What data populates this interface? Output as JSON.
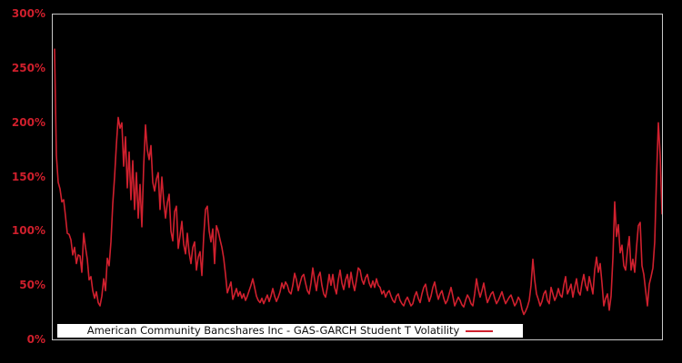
{
  "figure": {
    "background_color": "#000000",
    "plot_border_color": "#c8c8c8"
  },
  "y_axis": {
    "tick_labels": [
      "0%",
      "50%",
      "100%",
      "150%",
      "200%",
      "250%",
      "300%"
    ],
    "tick_values": [
      0,
      50,
      100,
      150,
      200,
      250,
      300
    ],
    "label_color": "#cf1f2c"
  },
  "x_axis": {
    "tick_labels": []
  },
  "legend": {
    "label": "American Community Bancshares Inc - GAS-GARCH Student T Volatility",
    "background": "#ffffff",
    "text_color": "#111111",
    "line_sample_color": "#d0202e",
    "position": "bottom-center-inside"
  },
  "chart_data": {
    "type": "line",
    "title": "",
    "xlabel": "",
    "ylabel": "",
    "ylim": [
      0,
      300
    ],
    "y_unit": "%",
    "grid": false,
    "x_tick_labels_visible": false,
    "legend_position": "bottom-center-inside",
    "series": [
      {
        "name": "American Community Bancshares Inc - GAS-GARCH Student T Volatility",
        "color": "#d0202e",
        "unit": "percent volatility",
        "values": [
          268,
          170,
          145,
          139,
          127,
          129,
          114,
          98,
          97,
          92,
          78,
          85,
          70,
          78,
          77,
          62,
          98,
          85,
          74,
          55,
          58,
          45,
          38,
          44,
          34,
          31,
          40,
          56,
          45,
          75,
          68,
          90,
          125,
          150,
          180,
          205,
          195,
          200,
          160,
          187,
          140,
          173,
          129,
          165,
          120,
          154,
          112,
          143,
          104,
          160,
          198,
          175,
          166,
          179,
          145,
          137,
          148,
          154,
          120,
          150,
          128,
          112,
          126,
          134,
          100,
          91,
          118,
          123,
          84,
          96,
          109,
          88,
          79,
          98,
          80,
          70,
          85,
          90,
          64,
          76,
          81,
          59,
          95,
          120,
          123,
          100,
          90,
          102,
          70,
          105,
          100,
          92,
          85,
          75,
          60,
          43,
          48,
          53,
          37,
          42,
          47,
          40,
          44,
          38,
          42,
          36,
          40,
          45,
          50,
          56,
          48,
          40,
          36,
          34,
          38,
          33,
          37,
          41,
          35,
          40,
          47,
          40,
          35,
          39,
          44,
          52,
          47,
          53,
          50,
          44,
          42,
          50,
          61,
          55,
          45,
          52,
          58,
          60,
          52,
          45,
          42,
          52,
          66,
          55,
          45,
          58,
          62,
          50,
          42,
          39,
          48,
          60,
          50,
          60,
          48,
          42,
          55,
          64,
          52,
          46,
          55,
          60,
          48,
          62,
          52,
          45,
          55,
          66,
          64,
          55,
          51,
          57,
          60,
          52,
          48,
          54,
          48,
          56,
          50,
          48,
          42,
          45,
          39,
          43,
          45,
          40,
          36,
          34,
          40,
          42,
          36,
          33,
          31,
          36,
          39,
          35,
          31,
          33,
          40,
          44,
          38,
          34,
          42,
          48,
          51,
          42,
          35,
          40,
          48,
          53,
          44,
          37,
          42,
          45,
          38,
          33,
          36,
          42,
          48,
          40,
          31,
          35,
          39,
          36,
          32,
          30,
          36,
          41,
          38,
          33,
          31,
          42,
          56,
          46,
          39,
          45,
          52,
          42,
          34,
          38,
          42,
          44,
          38,
          33,
          36,
          40,
          44,
          38,
          33,
          36,
          39,
          41,
          36,
          31,
          34,
          39,
          36,
          28,
          23,
          26,
          30,
          36,
          50,
          74,
          55,
          42,
          37,
          31,
          35,
          42,
          45,
          36,
          33,
          48,
          42,
          36,
          40,
          47,
          41,
          39,
          50,
          58,
          42,
          46,
          51,
          39,
          48,
          56,
          44,
          41,
          52,
          60,
          50,
          45,
          58,
          50,
          42,
          64,
          76,
          62,
          70,
          52,
          31,
          38,
          42,
          27,
          40,
          75,
          127,
          95,
          106,
          80,
          87,
          68,
          64,
          82,
          95,
          64,
          74,
          62,
          85,
          105,
          108,
          68,
          60,
          45,
          31,
          51,
          58,
          66,
          90,
          150,
          200,
          170,
          116
        ]
      }
    ]
  }
}
